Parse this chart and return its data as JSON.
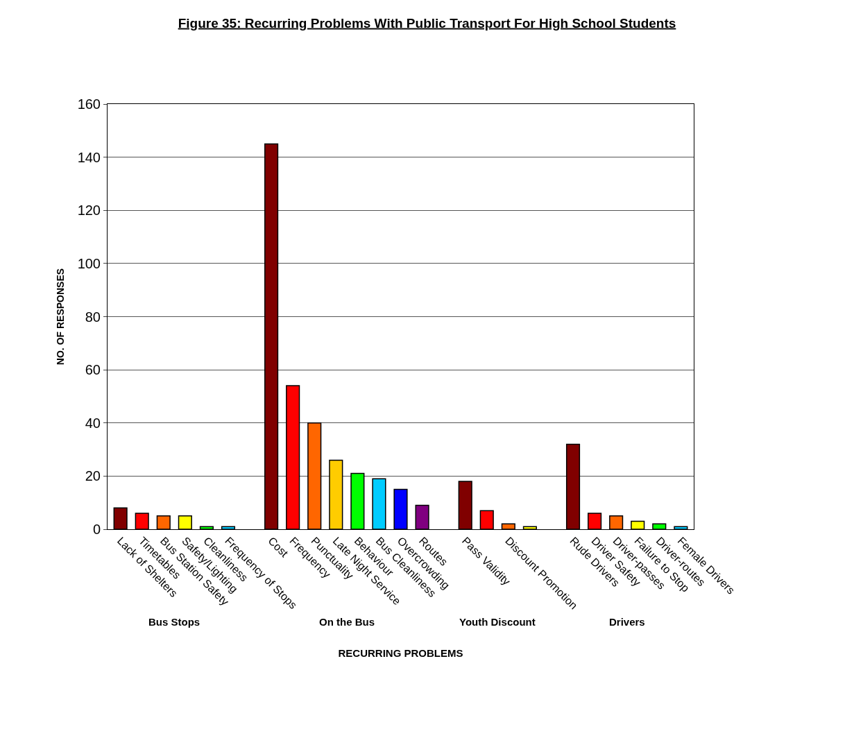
{
  "chart_data": {
    "type": "bar",
    "title": "Figure 35: Recurring Problems With Public Transport For High School Students",
    "xlabel": "RECURRING PROBLEMS",
    "ylabel": "NO. OF RESPONSES",
    "categories": [
      "Lack of Shelters",
      "Timetables",
      "Bus Station Safety",
      "Safety/Lighting",
      "Cleanliness",
      "Frequency of Stops",
      null,
      "Cost",
      "Frequency",
      "Punctuality",
      "Late Night Service",
      "Behaviour",
      "Bus Cleanliness",
      "Overcrowding",
      "Routes",
      null,
      "Pass Validity",
      null,
      "Discount Promotion",
      null,
      null,
      "Rude Drivers",
      "Driver Safety",
      "Driver-passes",
      "Failure to Stop",
      "Driver-routes",
      "Female Drivers"
    ],
    "values": [
      8,
      6,
      5,
      5,
      1,
      1,
      null,
      145,
      54,
      40,
      26,
      21,
      19,
      15,
      9,
      null,
      18,
      7,
      2,
      1,
      null,
      32,
      6,
      5,
      3,
      2,
      1
    ],
    "colors": [
      "#800000",
      "#ff0000",
      "#ff6600",
      "#ffff00",
      "#00ff00",
      "#00ccff",
      null,
      "#800000",
      "#ff0000",
      "#ff6600",
      "#ffcc00",
      "#00ff00",
      "#00ccff",
      "#0000ff",
      "#800080",
      null,
      "#800000",
      "#ff0000",
      "#ff6600",
      "#ffff00",
      null,
      "#800000",
      "#ff0000",
      "#ff6600",
      "#ffff00",
      "#00ff00",
      "#00ccff"
    ],
    "annotations": [
      "Bus Stops",
      "On the Bus",
      "Youth Discount",
      "Drivers"
    ],
    "ylim": [
      0,
      160
    ],
    "yticks": [
      0,
      20,
      40,
      60,
      80,
      100,
      120,
      140,
      160
    ],
    "grid": "y",
    "legend": false
  }
}
